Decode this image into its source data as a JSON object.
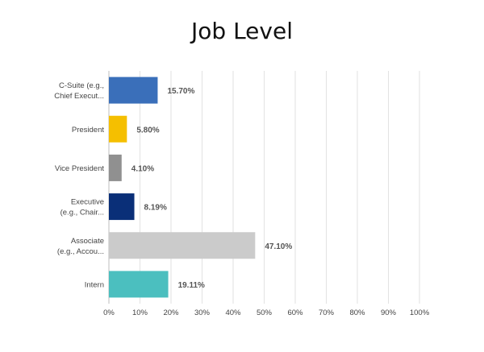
{
  "chart_data": {
    "type": "bar",
    "orientation": "horizontal",
    "title": "Job Level",
    "categories": [
      [
        "C-Suite (e.g.,",
        "Chief Execut..."
      ],
      [
        "President"
      ],
      [
        "Vice President"
      ],
      [
        "Executive",
        "(e.g., Chair..."
      ],
      [
        "Associate",
        "(e.g., Accou..."
      ],
      [
        "Intern"
      ]
    ],
    "values": [
      15.7,
      5.8,
      4.1,
      8.19,
      47.1,
      19.11
    ],
    "value_labels": [
      "15.70%",
      "5.80%",
      "4.10%",
      "8.19%",
      "47.10%",
      "19.11%"
    ],
    "bar_colors": [
      "#3a6fba",
      "#f5bf00",
      "#909090",
      "#0a2f78",
      "#cbcbcb",
      "#4bbfbf"
    ],
    "xlim": [
      0,
      100
    ],
    "xticks": [
      0,
      10,
      20,
      30,
      40,
      50,
      60,
      70,
      80,
      90,
      100
    ],
    "xtick_labels": [
      "0%",
      "10%",
      "20%",
      "30%",
      "40%",
      "50%",
      "60%",
      "70%",
      "80%",
      "90%",
      "100%"
    ],
    "grid": true,
    "legend": "none"
  }
}
